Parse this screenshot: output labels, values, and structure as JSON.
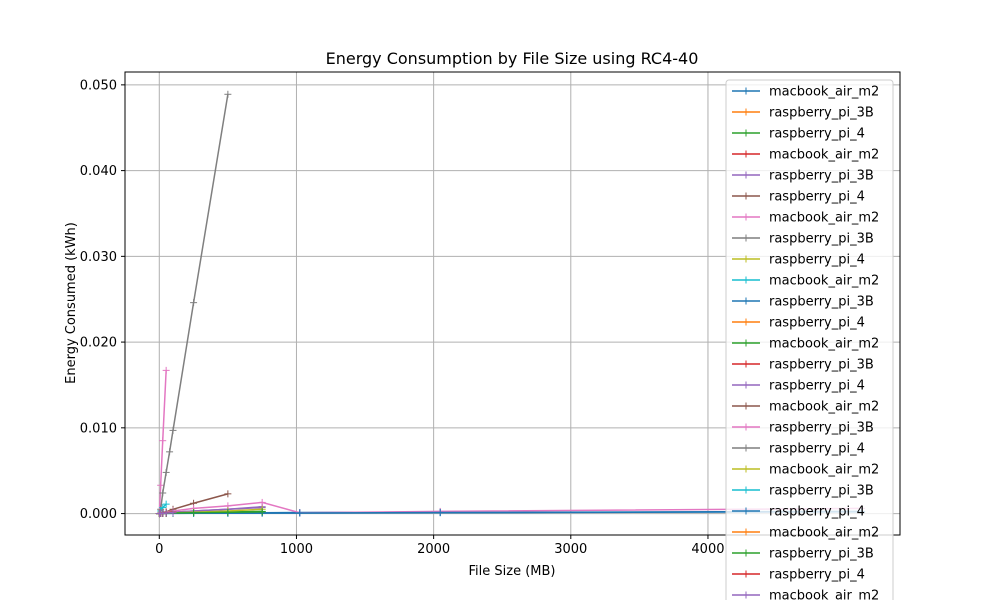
{
  "chart_data": {
    "type": "line",
    "title": "Energy Consumption by File Size using RC4-40",
    "xlabel": "File Size (MB)",
    "ylabel": "Energy Consumed (kWh)",
    "xlim": [
      -250,
      5400
    ],
    "ylim": [
      -0.0025,
      0.0515
    ],
    "xticks": [
      0,
      1000,
      2000,
      3000,
      4000
    ],
    "xtick_labels": [
      "0",
      "1000",
      "2000",
      "3000",
      "4000"
    ],
    "yticks": [
      0.0,
      0.01,
      0.02,
      0.03,
      0.04,
      0.05
    ],
    "ytick_labels": [
      "0.000",
      "0.010",
      "0.020",
      "0.030",
      "0.040",
      "0.050"
    ],
    "grid": true,
    "legend_position": "top-right",
    "marker": "+",
    "series": [
      {
        "name": "macbook_air_m2",
        "color": "#1f77b4",
        "x": [
          1,
          10,
          25,
          50,
          100,
          250,
          500,
          750,
          1024,
          2048,
          5120
        ],
        "y": [
          1e-05,
          1e-05,
          1e-05,
          2e-05,
          2e-05,
          3e-05,
          4e-05,
          5e-05,
          6e-05,
          0.0001,
          0.0002
        ]
      },
      {
        "name": "raspberry_pi_3B",
        "color": "#ff7f0e",
        "x": [
          1,
          10,
          25,
          50,
          100
        ],
        "y": [
          0.0,
          5e-05,
          0.0001,
          0.0002,
          0.0003
        ]
      },
      {
        "name": "raspberry_pi_4",
        "color": "#2ca02c",
        "x": [
          1,
          10,
          25,
          50,
          100,
          250,
          500,
          750
        ],
        "y": [
          0.0,
          1e-05,
          2e-05,
          4e-05,
          6e-05,
          0.0001,
          0.00015,
          0.0002
        ]
      },
      {
        "name": "macbook_air_m2",
        "color": "#d62728",
        "x": [
          1,
          10,
          25,
          50,
          100
        ],
        "y": [
          0.0,
          2e-05,
          5e-05,
          0.0001,
          0.0002
        ]
      },
      {
        "name": "raspberry_pi_3B",
        "color": "#9467bd",
        "x": [
          1,
          10,
          25,
          50,
          100,
          250,
          500,
          750
        ],
        "y": [
          0.0,
          2e-05,
          4e-05,
          8e-05,
          0.00015,
          0.0003,
          0.0005,
          0.0007
        ]
      },
      {
        "name": "raspberry_pi_4",
        "color": "#8c564b",
        "x": [
          1,
          10,
          25,
          50,
          100,
          250,
          500
        ],
        "y": [
          0.0,
          5e-05,
          0.0001,
          0.0002,
          0.0005,
          0.0012,
          0.0023
        ]
      },
      {
        "name": "macbook_air_m2",
        "color": "#e377c2",
        "x": [
          1,
          10,
          25,
          50
        ],
        "y": [
          0.0,
          0.0033,
          0.0085,
          0.0167
        ]
      },
      {
        "name": "raspberry_pi_3B",
        "color": "#7f7f7f",
        "x": [
          1,
          10,
          25,
          50,
          75,
          100,
          250,
          500
        ],
        "y": [
          0.0,
          0.0005,
          0.0024,
          0.0048,
          0.0072,
          0.0097,
          0.0246,
          0.0489
        ]
      },
      {
        "name": "raspberry_pi_4",
        "color": "#bcbd22",
        "x": [
          1,
          10,
          25,
          50,
          100
        ],
        "y": [
          0.0,
          2e-05,
          5e-05,
          0.0001,
          0.0002
        ]
      },
      {
        "name": "macbook_air_m2",
        "color": "#17becf",
        "x": [
          1,
          10,
          25,
          50
        ],
        "y": [
          0.0,
          0.0003,
          0.0007,
          0.0011
        ]
      },
      {
        "name": "raspberry_pi_3B",
        "color": "#1f77b4",
        "x": [
          1,
          10,
          25,
          50,
          100,
          250,
          500,
          750,
          1024,
          2048
        ],
        "y": [
          0.0,
          1e-05,
          2e-05,
          3e-05,
          4e-05,
          6e-05,
          8e-05,
          0.0001,
          0.00012,
          0.00018
        ]
      },
      {
        "name": "raspberry_pi_4",
        "color": "#ff7f0e",
        "x": [
          1,
          10,
          25,
          50,
          100
        ],
        "y": [
          0.0,
          3e-05,
          8e-05,
          0.00015,
          0.0003
        ]
      },
      {
        "name": "macbook_air_m2",
        "color": "#2ca02c",
        "x": [
          1,
          10,
          25,
          50,
          100,
          250,
          500,
          750
        ],
        "y": [
          0.0,
          1e-05,
          3e-05,
          5e-05,
          8e-05,
          0.00012,
          0.00018,
          0.00025
        ]
      },
      {
        "name": "raspberry_pi_3B",
        "color": "#d62728",
        "x": [
          1,
          10,
          25,
          50,
          100
        ],
        "y": [
          0.0,
          2e-05,
          4e-05,
          8e-05,
          0.00012
        ]
      },
      {
        "name": "raspberry_pi_4",
        "color": "#9467bd",
        "x": [
          1,
          10,
          25,
          50,
          100,
          250,
          500,
          750
        ],
        "y": [
          0.0,
          2e-05,
          5e-05,
          0.0001,
          0.00015,
          0.0003,
          0.0005,
          0.0008
        ]
      },
      {
        "name": "macbook_air_m2",
        "color": "#8c564b",
        "x": [
          1,
          10,
          25,
          50,
          100
        ],
        "y": [
          0.0,
          3e-05,
          7e-05,
          0.00012,
          0.0002
        ]
      },
      {
        "name": "raspberry_pi_3B",
        "color": "#e377c2",
        "x": [
          1,
          10,
          25,
          50,
          100,
          250,
          500,
          750,
          1024,
          2048,
          5120
        ],
        "y": [
          0.0,
          3e-05,
          8e-05,
          0.00015,
          0.0003,
          0.0006,
          0.0009,
          0.0013,
          0.0001,
          0.00025,
          0.0006
        ]
      },
      {
        "name": "raspberry_pi_4",
        "color": "#7f7f7f",
        "x": [
          1,
          10,
          25,
          50,
          100
        ],
        "y": [
          0.0,
          2e-05,
          5e-05,
          0.0001,
          0.0002
        ]
      },
      {
        "name": "macbook_air_m2",
        "color": "#bcbd22",
        "x": [
          1,
          10,
          25,
          50,
          100,
          250,
          500,
          750
        ],
        "y": [
          0.0,
          1e-05,
          2e-05,
          4e-05,
          8e-05,
          0.00015,
          0.0003,
          0.0005
        ]
      },
      {
        "name": "raspberry_pi_3B",
        "color": "#17becf",
        "x": [
          1,
          10,
          25,
          50
        ],
        "y": [
          0.0,
          2e-05,
          4e-05,
          6e-05
        ]
      },
      {
        "name": "raspberry_pi_4",
        "color": "#1f77b4",
        "x": [
          1,
          10,
          25,
          50,
          100,
          250,
          500,
          750,
          1024,
          2048,
          5120
        ],
        "y": [
          0.0,
          1e-05,
          1e-05,
          2e-05,
          3e-05,
          4e-05,
          5e-05,
          6e-05,
          7e-05,
          0.00012,
          0.00025
        ]
      },
      {
        "name": "macbook_air_m2",
        "color": "#ff7f0e",
        "x": [
          1,
          10,
          25,
          50
        ],
        "y": [
          0.0,
          1e-05,
          2e-05,
          3e-05
        ]
      },
      {
        "name": "raspberry_pi_3B",
        "color": "#2ca02c",
        "x": [
          1,
          10,
          25,
          50,
          100,
          250,
          500,
          750
        ],
        "y": [
          0.0,
          1e-05,
          2e-05,
          4e-05,
          6e-05,
          0.0001,
          0.00015,
          0.0002
        ]
      },
      {
        "name": "raspberry_pi_4",
        "color": "#d62728",
        "x": [
          1,
          10,
          25,
          50,
          100
        ],
        "y": [
          0.0,
          2e-05,
          4e-05,
          8e-05,
          0.00015
        ]
      },
      {
        "name": "macbook_air_m2",
        "color": "#9467bd",
        "x": [
          1,
          10,
          25,
          50,
          100
        ],
        "y": [
          0.0,
          1e-05,
          3e-05,
          6e-05,
          0.0001
        ]
      }
    ]
  }
}
